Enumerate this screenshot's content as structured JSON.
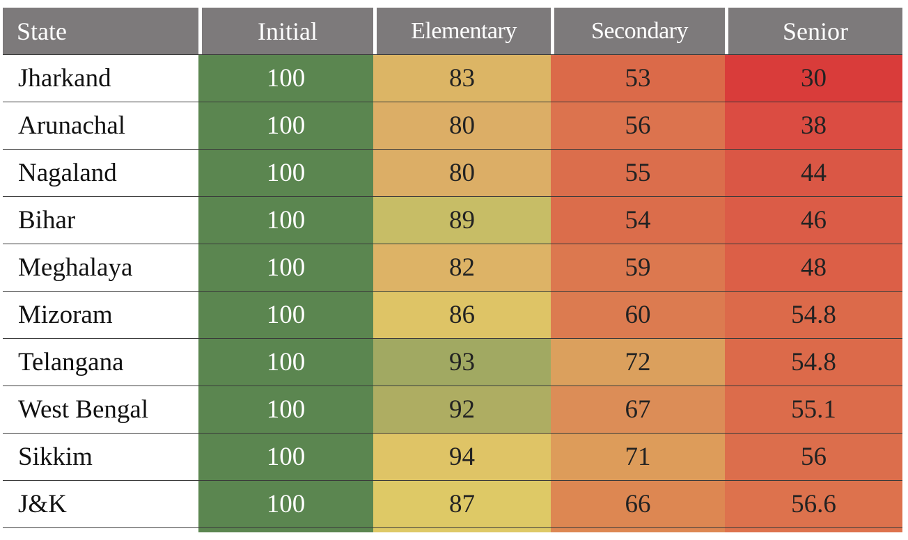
{
  "chart_data": {
    "type": "table",
    "columns": [
      "State",
      "Initial",
      "Elementary",
      "Secondary",
      "Senior"
    ],
    "rows": [
      {
        "state": "Jharkand",
        "initial": "100",
        "elementary": "83",
        "secondary": "53",
        "senior": "30"
      },
      {
        "state": "Arunachal",
        "initial": "100",
        "elementary": "80",
        "secondary": "56",
        "senior": "38"
      },
      {
        "state": "Nagaland",
        "initial": "100",
        "elementary": "80",
        "secondary": "55",
        "senior": "44"
      },
      {
        "state": "Bihar",
        "initial": "100",
        "elementary": "89",
        "secondary": "54",
        "senior": "46"
      },
      {
        "state": "Meghalaya",
        "initial": "100",
        "elementary": "82",
        "secondary": "59",
        "senior": "48"
      },
      {
        "state": "Mizoram",
        "initial": "100",
        "elementary": "86",
        "secondary": "60",
        "senior": "54.8"
      },
      {
        "state": "Telangana",
        "initial": "100",
        "elementary": "93",
        "secondary": "72",
        "senior": "54.8"
      },
      {
        "state": "West Bengal",
        "initial": "100",
        "elementary": "92",
        "secondary": "67",
        "senior": "55.1"
      },
      {
        "state": "Sikkim",
        "initial": "100",
        "elementary": "94",
        "secondary": "71",
        "senior": "56"
      },
      {
        "state": "J&K",
        "initial": "100",
        "elementary": "87",
        "secondary": "66",
        "senior": "56.6"
      }
    ],
    "colors": {
      "header": "#7d7a7b",
      "initial": "#5b8650",
      "elementary": {
        "80": "#dcae66",
        "82": "#ddb366",
        "83": "#dcb565",
        "86": "#dec466",
        "87": "#dec966",
        "89": "#c7bd66",
        "92": "#aead62",
        "93": "#a1a962",
        "94": "#dfc466"
      },
      "secondary": {
        "53": "#db6a49",
        "54": "#db6d4b",
        "55": "#db6e4c",
        "56": "#dc734e",
        "59": "#dc784f",
        "60": "#dc7b50",
        "66": "#dd8752",
        "67": "#dc8d57",
        "71": "#dd9c5a",
        "72": "#dba05d"
      },
      "senior": {
        "30": "#d93c3a",
        "38": "#db4c42",
        "44": "#da5745",
        "46": "#db5c47",
        "48": "#dc5f47",
        "54.8": "#dc6a4a",
        "55.1": "#dc6c4b",
        "56": "#dc6e4c",
        "56.6": "#dd724d"
      }
    }
  }
}
